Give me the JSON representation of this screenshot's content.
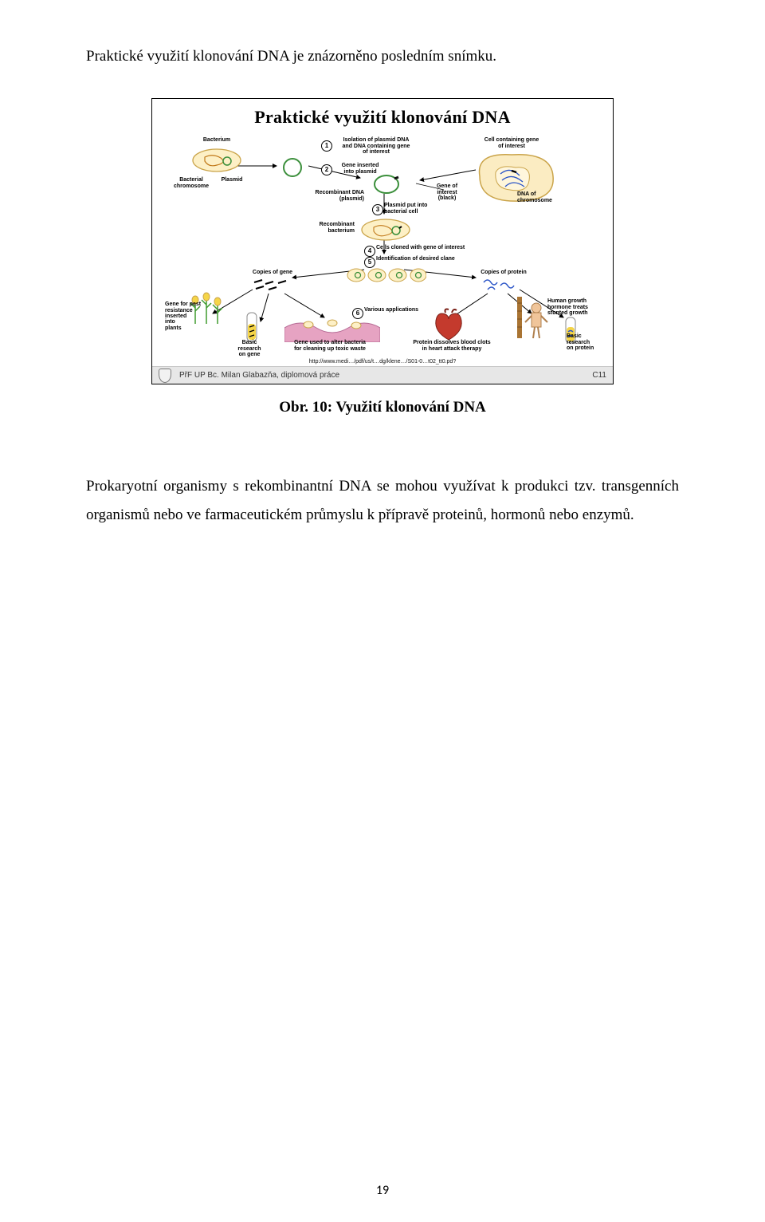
{
  "intro_text": "Praktické využití klonování DNA je znázorněno posledním snímku.",
  "figure": {
    "title": "Praktické využití klonování DNA",
    "caption": "Obr. 10: Využití klonování DNA",
    "url_line": "http://www.medi…/pdf/us/t…dg/klene…/S01-0…t02_tt0.pd?",
    "footer_author": "PřF UP  Bc. Milan Glabazňa, diplomová práce",
    "footer_code": "C11",
    "colors": {
      "cell_fill": "#fdf0c6",
      "cell_stroke": "#caa44a",
      "cell_big_fill": "#fbecc2",
      "plasmid_stroke": "#3b8f3b",
      "insert_color": "#1946c4",
      "dna_blue": "#2a54c7",
      "heart_color": "#c43a2d",
      "tube_yellow": "#f5d548",
      "plant_green": "#3f9a2e",
      "ground_pink": "#e6a3c2",
      "human_skin": "#f0c59a",
      "ruler_brown": "#a97433"
    },
    "labels": {
      "bacterium": "Bacterium",
      "bacterial_chrom": "Bacterial\nchromosome",
      "plasmid": "Plasmid",
      "step1": "Isolation of plasmid DNA\nand DNA containing gene\nof interest",
      "step2": "Gene inserted\ninto plasmid",
      "cell_gene": "Cell containing gene\nof interest",
      "gene_interest": "Gene of\ninterest\n(black)",
      "dna_chrom": "DNA of\nchromosome",
      "recomb_dna": "Recombinant DNA\n(plasmid)",
      "step3": "Plasmid put into\nbacterial cell",
      "recomb_bact": "Recombinant\nbacterium",
      "step4": "Cells cloned with gene of interest",
      "step5": "Identification of desired clane",
      "copies_gene": "Copies of gene",
      "copies_protein": "Copies of protein",
      "gene_pest": "Gene for pest\nresistance\ninserted\ninto\nplants",
      "step6": "Various applications",
      "basic_gene": "Basic\nresearch\non gene",
      "alter_bact": "Gene used to alter bacteria\nfor cleaning up toxic waste",
      "protein_clots": "Protein dissolves blood clots\nin heart attack therapy",
      "hgh": "Human growth\nhormone treats\nstunted growth",
      "basic_protein": "Basic\nresearch\non protein"
    },
    "step_numbers": [
      "1",
      "2",
      "3",
      "4",
      "5",
      "6"
    ]
  },
  "body_paragraph": "Prokaryotní organismy s rekombinantní DNA se mohou využívat k produkci tzv. transgenních organismů nebo ve farmaceutickém průmyslu k přípravě proteinů, hormonů nebo enzymů.",
  "page_number": "19"
}
